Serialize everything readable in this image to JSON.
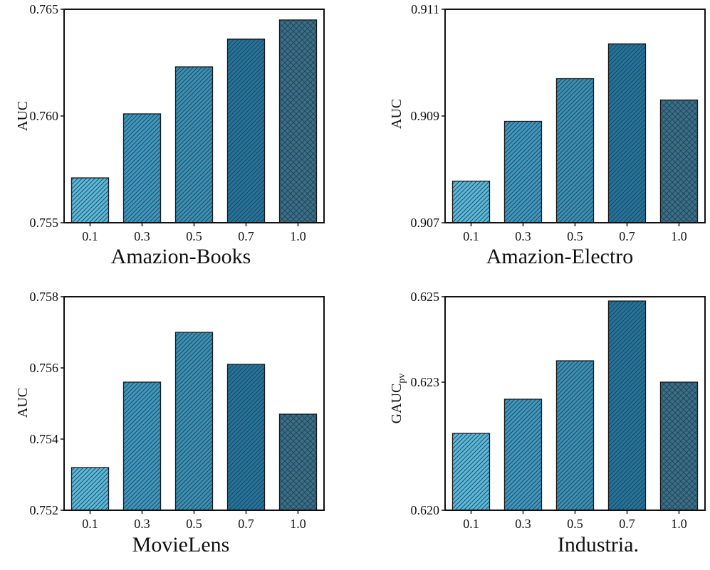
{
  "palette": {
    "bar_fills": [
      "#5ab8d9",
      "#3e97be",
      "#3a8fb3",
      "#24739a",
      "#3a6f86"
    ],
    "hatch_styles": [
      "diagonal",
      "diagonal",
      "diagonal",
      "diagonal",
      "crosshatch"
    ],
    "hatch_color": "#1f3f55"
  },
  "chart_data": [
    {
      "type": "bar",
      "title": "",
      "xlabel": "Amazion-Books",
      "ylabel": "AUC",
      "ylabel_sub": "",
      "categories": [
        "0.1",
        "0.3",
        "0.5",
        "0.7",
        "1.0"
      ],
      "values": [
        0.7571,
        0.7601,
        0.7623,
        0.7636,
        0.7645
      ],
      "ylim": [
        0.755,
        0.765
      ],
      "yticks": [
        0.755,
        0.76,
        0.765
      ],
      "ytick_labels": [
        "0.755",
        "0.760",
        "0.765"
      ]
    },
    {
      "type": "bar",
      "title": "",
      "xlabel": "Amazion-Electro",
      "ylabel": "AUC",
      "ylabel_sub": "",
      "categories": [
        "0.1",
        "0.3",
        "0.5",
        "0.7",
        "1.0"
      ],
      "values": [
        0.90778,
        0.9089,
        0.9097,
        0.91035,
        0.9093
      ],
      "ylim": [
        0.907,
        0.911
      ],
      "yticks": [
        0.907,
        0.909,
        0.911
      ],
      "ytick_labels": [
        "0.907",
        "0.909",
        "0.911"
      ]
    },
    {
      "type": "bar",
      "title": "",
      "xlabel": "MovieLens",
      "ylabel": "AUC",
      "ylabel_sub": "",
      "categories": [
        "0.1",
        "0.3",
        "0.5",
        "0.7",
        "1.0"
      ],
      "values": [
        0.7532,
        0.7556,
        0.757,
        0.7561,
        0.7547
      ],
      "ylim": [
        0.752,
        0.758
      ],
      "yticks": [
        0.752,
        0.754,
        0.756,
        0.758
      ],
      "ytick_labels": [
        "0.752",
        "0.754",
        "0.756",
        "0.758"
      ]
    },
    {
      "type": "bar",
      "title": "",
      "xlabel": "Industria.",
      "ylabel": "GAUC",
      "ylabel_sub": "pv",
      "categories": [
        "0.1",
        "0.3",
        "0.5",
        "0.7",
        "1.0"
      ],
      "values": [
        0.6218,
        0.6226,
        0.6235,
        0.6249,
        0.623
      ],
      "ylim": [
        0.62,
        0.625
      ],
      "yticks": [
        0.62,
        0.623,
        0.625
      ],
      "ytick_labels": [
        "0.620",
        "0.623",
        "0.625"
      ]
    }
  ]
}
